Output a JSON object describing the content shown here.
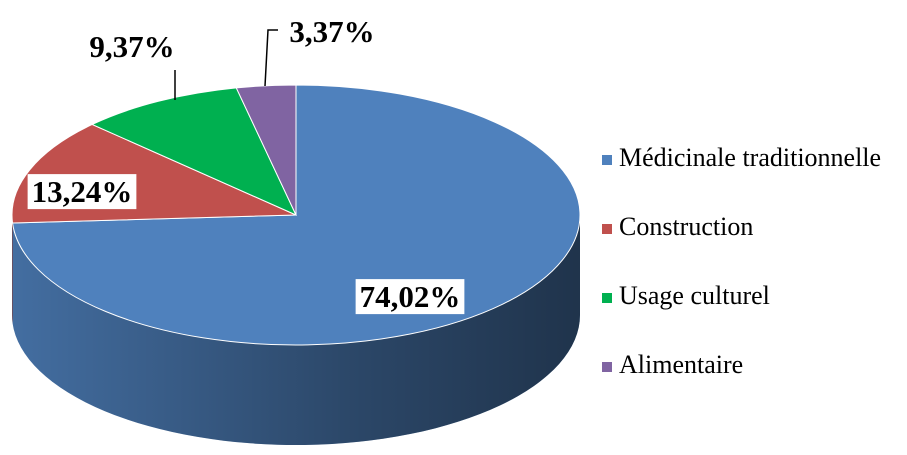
{
  "chart_data": {
    "type": "pie",
    "categories": [
      "Médicinale traditionnelle",
      "Construction",
      "Usage culturel",
      "Alimentaire"
    ],
    "values": [
      74.02,
      13.24,
      9.37,
      3.37
    ],
    "value_labels": [
      "74,02%",
      "13,24%",
      "9,37%",
      "3,37%"
    ],
    "colors": [
      "#4f81bd",
      "#c0504d",
      "#00b050",
      "#8064a2"
    ]
  }
}
